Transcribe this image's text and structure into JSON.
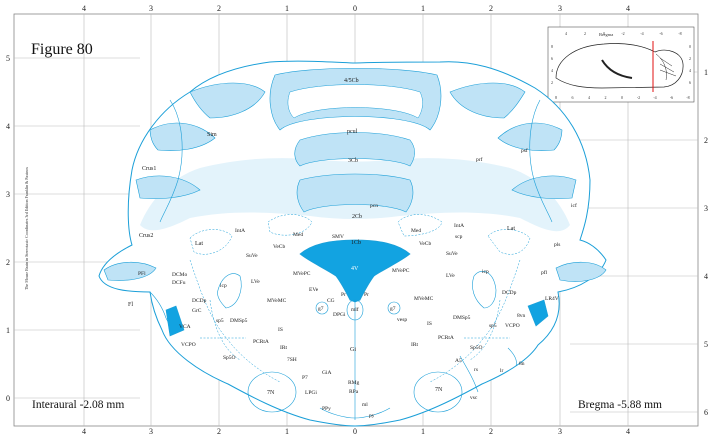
{
  "figure": {
    "title": "Figure 80",
    "interaural": "Interaural -2.08 mm",
    "bregma": "Bregma -5.88 mm",
    "side_label": "The Mouse Brain in Stereotaxic Coordinates 3rd Edition  Franklin & Paxinos"
  },
  "axes": {
    "top_ticks": [
      "4",
      "3",
      "2",
      "1",
      "0",
      "1",
      "2",
      "3",
      "4"
    ],
    "bottom_ticks": [
      "4",
      "3",
      "2",
      "1",
      "0",
      "1",
      "2",
      "3",
      "4"
    ],
    "left_ticks": [
      "5",
      "4",
      "3",
      "2",
      "1",
      "0"
    ],
    "right_ticks": [
      "1",
      "2",
      "3",
      "4",
      "5",
      "6"
    ]
  },
  "inset": {
    "title": "Bregma",
    "top_ticks": [
      "4",
      "2",
      "0",
      "-2",
      "-4",
      "-6",
      "-8"
    ],
    "bottom_ticks": [
      "8",
      "6",
      "4",
      "2",
      "0",
      "-2",
      "-4",
      "-6",
      "-8"
    ],
    "left_ticks": [
      "8",
      "6",
      "4",
      "2"
    ],
    "right_ticks": [
      "0",
      "2",
      "4",
      "6"
    ]
  },
  "colors": {
    "outline": "#1b9fd8",
    "white_matter": "#bfe3f6",
    "pale_fill": "#e3f3fb",
    "ventricle": "#12a3e1",
    "grid": "#b9b9b9"
  },
  "labels": {
    "l_4_5cb": "4/5Cb",
    "l_pcul": "pcul",
    "l_3cb": "3Cb",
    "l_sim": "Sim",
    "l_prf": "prf",
    "l_psf": "psf",
    "l_crus1": "Crus1",
    "l_pcn": "pcn",
    "l_2cb": "2Cb",
    "l_icf": "icf",
    "l_crus2": "Crus2",
    "l_lat_l": "Lat",
    "l_inta_l": "IntA",
    "l_med_l": "Med",
    "l_vecb_l": "VeCb",
    "l_smv": "SMV",
    "l_1cb": "1Cb",
    "l_med_r": "Med",
    "l_inta_r": "IntA",
    "l_scp": "scp",
    "l_lat_r": "Lat",
    "l_vecb_r": "VeCb",
    "l_pls": "pls",
    "l_suve_l": "SuVe",
    "l_4v": "4V",
    "l_suve_r": "SuVe",
    "l_pfl_l": "PFl",
    "l_dcmo": "DCMo",
    "l_dcfu": "DCFu",
    "l_icp_l": "icp",
    "l_lve_l": "LVe",
    "l_mvepc_l": "MVePC",
    "l_mvepc_r": "MVePC",
    "l_lve_r": "LVe",
    "l_icp_r": "icp",
    "l_pfl_r": "pfl",
    "l_fl": "Fl",
    "l_dcdp_l": "DCDp",
    "l_grc": "GrC",
    "l_mvemc_l": "MVeMC",
    "l_eve": "EVe",
    "l_cg": "CG",
    "l_pr_l": "Pr",
    "l_pr_r": "Pr",
    "l_g7_l": "g7",
    "l_g7_r": "g7",
    "l_mvemc_r": "MVeMC",
    "l_dcdp_r": "DCDp",
    "l_8vn": "8vn",
    "l_lr4v": "LR4V",
    "l_dpgi": "DPGi",
    "l_mlf": "mlf",
    "l_vesp": "vesp",
    "l_dmsp5_r": "DMSp5",
    "l_vca": "VCA",
    "l_sp5_l": "sp5",
    "l_dmsp5_l": "DMSp5",
    "l_is_l": "IS",
    "l_is_r": "IS",
    "l_sp5_r": "sp5",
    "l_vcpo_r": "VCPO",
    "l_vcpo_l": "VCPO",
    "l_pcrta_l": "PCRtA",
    "l_irt_l": "IRt",
    "l_gi": "Gi",
    "l_irt_r": "IRt",
    "l_pcrta_r": "PCRtA",
    "l_sp5o_r": "Sp5O",
    "l_sp5o_l": "Sp5O",
    "l_7sh": "7SH",
    "l_a5": "A5",
    "l_8n": "8n",
    "l_rs": "rs",
    "l_lr": "lr",
    "l_p7": "P7",
    "l_gia": "GiA",
    "l_rmg": "RMg",
    "l_rpa": "RPa",
    "l_7n_l": "7N",
    "l_lpgi": "LPGi",
    "l_7n_r": "7N",
    "l_vsc": "vsc",
    "l_ppy": "PPy",
    "l_ml": "ml",
    "l_py": "py"
  }
}
